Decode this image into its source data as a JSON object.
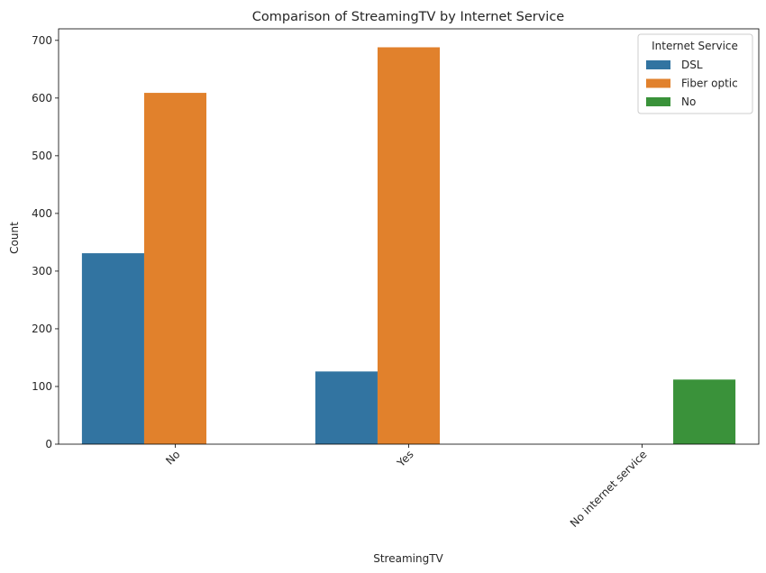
{
  "chart_data": {
    "type": "bar",
    "title": "Comparison of StreamingTV by Internet Service",
    "xlabel": "StreamingTV",
    "ylabel": "Count",
    "categories": [
      "No",
      "Yes",
      "No internet service"
    ],
    "series": [
      {
        "name": "DSL",
        "values": [
          331,
          126,
          0
        ],
        "color": "#3274a1"
      },
      {
        "name": "Fiber optic",
        "values": [
          609,
          688,
          0
        ],
        "color": "#e1812c"
      },
      {
        "name": "No",
        "values": [
          0,
          0,
          112
        ],
        "color": "#3a923a"
      }
    ],
    "ylim": [
      0,
      720
    ],
    "yticks": [
      0,
      100,
      200,
      300,
      400,
      500,
      600,
      700
    ],
    "legend": {
      "title": "Internet Service",
      "placement": "top-right"
    },
    "grid": false
  }
}
